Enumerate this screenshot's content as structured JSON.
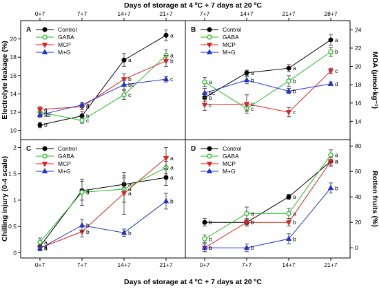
{
  "figure": {
    "top_xlabel": "Days of storage at 4 ºC + 7 days at 20 ºC",
    "bottom_xlabel": "Days of storage at 4 ºC + 7 days at 20 ºC",
    "colors": {
      "Control": "#000000",
      "GABA": "#22bb22",
      "MCP": "#dd2222",
      "M+G": "#2233cc"
    },
    "markers": {
      "Control": "circle",
      "GABA": "open-circle",
      "MCP": "triangle-down",
      "M+G": "triangle-up"
    }
  },
  "chart_data": [
    {
      "panel": "A",
      "type": "line",
      "ylabel": "Electrolyte leakage (%)",
      "x": [
        "0+7",
        "7+7",
        "14+7",
        "21+7"
      ],
      "ylim": [
        9,
        22
      ],
      "yticks": [
        10,
        12,
        14,
        16,
        18,
        20
      ],
      "x_tick_position": "top",
      "y_tick_side": "left",
      "legend": "top-left",
      "series": [
        {
          "name": "Control",
          "values": [
            10.6,
            11.6,
            17.7,
            20.4
          ],
          "errors": [
            0.3,
            0.5,
            0.7,
            0.6
          ],
          "labels": [
            "b",
            "b",
            "a",
            "a"
          ]
        },
        {
          "name": "GABA",
          "values": [
            12.0,
            11.1,
            13.9,
            18.2
          ],
          "errors": [
            0.3,
            0.3,
            0.5,
            0.6
          ],
          "labels": [
            "a",
            "c",
            "c",
            "a"
          ]
        },
        {
          "name": "MCP",
          "values": [
            12.3,
            12.6,
            15.6,
            17.6
          ],
          "errors": [
            0.3,
            0.3,
            0.6,
            0.6
          ],
          "labels": [
            "a",
            "a",
            "b",
            "b"
          ]
        },
        {
          "name": "M+G",
          "values": [
            11.7,
            12.8,
            15.0,
            15.6
          ],
          "errors": [
            0.3,
            0.3,
            0.5,
            0.3
          ],
          "labels": [
            "ab",
            "a",
            "bc",
            "c"
          ]
        }
      ]
    },
    {
      "panel": "B",
      "type": "line",
      "ylabel": "MDA (μmol·kg⁻¹)",
      "x": [
        "7+7",
        "14+7",
        "21+7",
        "28+7"
      ],
      "ylim": [
        12,
        25
      ],
      "yticks": [
        14,
        16,
        18,
        20,
        22,
        24
      ],
      "x_tick_position": "top",
      "y_tick_side": "right",
      "legend": "top-left",
      "series": [
        {
          "name": "Control",
          "values": [
            16.6,
            19.3,
            19.8,
            22.9
          ],
          "errors": [
            0.4,
            0.3,
            0.4,
            0.6
          ],
          "labels": [
            "b",
            "a",
            "a",
            "a"
          ]
        },
        {
          "name": "GABA",
          "values": [
            18.3,
            15.4,
            18.4,
            21.6
          ],
          "errors": [
            0.5,
            0.3,
            0.6,
            0.5
          ],
          "labels": [
            "a",
            "c",
            "b",
            "b"
          ]
        },
        {
          "name": "MCP",
          "values": [
            15.8,
            15.9,
            15.0,
            19.5
          ],
          "errors": [
            0.6,
            1.0,
            0.5,
            0.3
          ],
          "labels": [
            "c",
            "c",
            "c",
            "c"
          ]
        },
        {
          "name": "M+G",
          "values": [
            17.1,
            18.5,
            17.3,
            18.1
          ],
          "errors": [
            0.5,
            0.4,
            0.3,
            0.2
          ],
          "labels": [
            "bc",
            "b",
            "b",
            "d"
          ]
        }
      ]
    },
    {
      "panel": "C",
      "type": "line",
      "ylabel": "Chilling injury (0-4 scale)",
      "x": [
        "0+7",
        "7+7",
        "14+7",
        "21+7"
      ],
      "ylim": [
        -0.1,
        2.15
      ],
      "yticks": [
        0.0,
        0.5,
        1.0,
        1.5,
        2.0
      ],
      "x_tick_position": "bottom",
      "y_tick_side": "left",
      "legend": "top-left",
      "series": [
        {
          "name": "Control",
          "values": [
            0.12,
            1.18,
            1.3,
            1.43
          ],
          "errors": [
            0.07,
            0.18,
            0.12,
            0.15
          ],
          "labels": [
            "a",
            "a",
            "a",
            "a"
          ]
        },
        {
          "name": "GABA",
          "values": [
            0.2,
            1.15,
            1.21,
            1.62
          ],
          "errors": [
            0.08,
            0.25,
            0.25,
            0.12
          ],
          "labels": [
            "a",
            "a",
            "a",
            "a"
          ]
        },
        {
          "name": "MCP",
          "values": [
            0.09,
            0.4,
            1.13,
            1.8
          ],
          "errors": [
            0.05,
            0.1,
            0.4,
            0.2
          ],
          "labels": [
            "a",
            "b",
            "a",
            "a"
          ]
        },
        {
          "name": "M+G",
          "values": [
            0.08,
            0.52,
            0.38,
            0.98
          ],
          "errors": [
            0.04,
            0.12,
            0.07,
            0.15
          ],
          "labels": [
            "a",
            "b",
            "b",
            "b"
          ]
        }
      ]
    },
    {
      "panel": "D",
      "type": "line",
      "ylabel": "Rotten fruits (%)",
      "x": [
        "0+7",
        "7+7",
        "14+7",
        "21+7"
      ],
      "ylim": [
        -8,
        85
      ],
      "yticks": [
        0,
        20,
        40,
        60,
        80
      ],
      "x_tick_position": "bottom",
      "y_tick_side": "right",
      "legend": "top-left",
      "series": [
        {
          "name": "Control",
          "values": [
            20,
            20,
            40,
            68
          ],
          "errors": [
            3,
            2,
            2,
            4
          ],
          "labels": [
            "b",
            "b",
            "a",
            "a"
          ]
        },
        {
          "name": "GABA",
          "values": [
            7,
            27,
            27,
            73
          ],
          "errors": [
            3,
            5,
            4,
            4
          ],
          "labels": [
            "b",
            "a",
            "a",
            "a"
          ]
        },
        {
          "name": "MCP",
          "values": [
            0,
            20,
            20,
            68
          ],
          "errors": [
            3,
            3,
            3,
            3
          ],
          "labels": [
            "c",
            "b",
            "b",
            "a"
          ]
        },
        {
          "name": "M+G",
          "values": [
            0,
            0,
            7,
            47
          ],
          "errors": [
            3,
            3,
            4,
            4
          ],
          "labels": [
            "b",
            "b",
            "b",
            "b"
          ]
        }
      ]
    }
  ]
}
